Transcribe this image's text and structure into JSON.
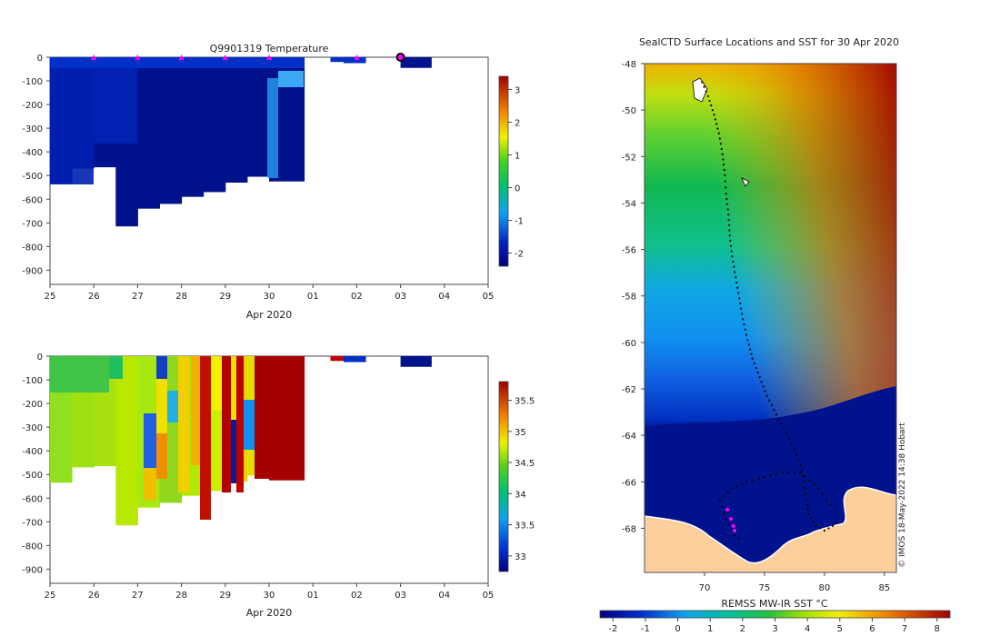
{
  "colors": {
    "deep_blue": "#00128c",
    "mid_blue": "#0030c8",
    "ice": "#2a9cf0",
    "land": "#fccf9d",
    "red_dark": "#a80000",
    "marker": "#ff00ff"
  },
  "chart_data": [
    {
      "type": "heatmap",
      "title": "Q9901319  Temperature",
      "xlabel": "Apr 2020",
      "x_ticks": [
        "25",
        "26",
        "27",
        "28",
        "29",
        "30",
        "01",
        "02",
        "03",
        "04",
        "05"
      ],
      "y_ticks": [
        "0",
        "-100",
        "-200",
        "-300",
        "-400",
        "-500",
        "-600",
        "-700",
        "-800",
        "-900"
      ],
      "ylim": [
        -960,
        0
      ],
      "colorbar_ticks": [
        "3",
        "2",
        "1",
        "0",
        "-1",
        "-2"
      ],
      "colorbar_range": [
        -2.4,
        3.4
      ],
      "profile_markers_day": [
        1,
        2,
        3,
        4,
        5,
        7,
        8
      ],
      "profiles": [
        {
          "x0": 0.0,
          "x1": 0.5,
          "depth": 535
        },
        {
          "x0": 0.5,
          "x1": 1.0,
          "depth": 470
        },
        {
          "x0": 1.0,
          "x1": 1.5,
          "depth": 465
        },
        {
          "x0": 1.5,
          "x1": 2.0,
          "depth": 715
        },
        {
          "x0": 2.0,
          "x1": 2.5,
          "depth": 640
        },
        {
          "x0": 2.5,
          "x1": 3.0,
          "depth": 620
        },
        {
          "x0": 3.0,
          "x1": 3.5,
          "depth": 590
        },
        {
          "x0": 3.5,
          "x1": 4.0,
          "depth": 570
        },
        {
          "x0": 4.0,
          "x1": 4.5,
          "depth": 530
        },
        {
          "x0": 4.5,
          "x1": 5.0,
          "depth": 505
        },
        {
          "x0": 5.0,
          "x1": 5.8,
          "depth": 525
        },
        {
          "x0": 6.4,
          "x1": 6.7,
          "depth": 20
        },
        {
          "x0": 6.7,
          "x1": 7.2,
          "depth": 25
        },
        {
          "x0": 8.0,
          "x1": 8.7,
          "depth": 45
        }
      ]
    },
    {
      "type": "heatmap",
      "title": "",
      "xlabel": "Apr 2020",
      "x_ticks": [
        "25",
        "26",
        "27",
        "28",
        "29",
        "30",
        "01",
        "02",
        "03",
        "04",
        "05"
      ],
      "y_ticks": [
        "0",
        "-100",
        "-200",
        "-300",
        "-400",
        "-500",
        "-600",
        "-700",
        "-800",
        "-900"
      ],
      "ylim": [
        -960,
        0
      ],
      "colorbar_ticks": [
        "35.5",
        "35",
        "34.5",
        "34",
        "33.5",
        "33"
      ],
      "colorbar_range": [
        32.75,
        35.8
      ],
      "profiles": [
        {
          "x0": 0.0,
          "x1": 0.5,
          "depth": 535
        },
        {
          "x0": 0.5,
          "x1": 1.0,
          "depth": 470
        },
        {
          "x0": 1.0,
          "x1": 1.5,
          "depth": 465
        },
        {
          "x0": 1.5,
          "x1": 2.0,
          "depth": 715
        },
        {
          "x0": 2.0,
          "x1": 2.5,
          "depth": 640
        },
        {
          "x0": 2.5,
          "x1": 3.0,
          "depth": 620
        },
        {
          "x0": 3.0,
          "x1": 3.5,
          "depth": 590
        },
        {
          "x0": 3.5,
          "x1": 4.0,
          "depth": 570
        },
        {
          "x0": 4.0,
          "x1": 4.5,
          "depth": 530
        },
        {
          "x0": 4.5,
          "x1": 5.0,
          "depth": 505
        },
        {
          "x0": 5.0,
          "x1": 5.8,
          "depth": 525
        },
        {
          "x0": 6.4,
          "x1": 6.7,
          "depth": 20
        },
        {
          "x0": 6.7,
          "x1": 7.2,
          "depth": 25
        },
        {
          "x0": 8.0,
          "x1": 8.7,
          "depth": 45
        }
      ]
    },
    {
      "type": "heatmap",
      "title": "SealCTD Surface Locations and SST for 30 Apr 2020",
      "xlabel": "",
      "x_ticks": [
        "70",
        "75",
        "80",
        "85"
      ],
      "xlim": [
        65,
        86
      ],
      "y_ticks": [
        "-48",
        "-50",
        "-52",
        "-54",
        "-56",
        "-58",
        "-60",
        "-62",
        "-64",
        "-66",
        "-68"
      ],
      "ylim": [
        -69.9,
        -48
      ],
      "colorbar_label": "REMSS MW-IR SST °C",
      "colorbar_ticks": [
        "-2",
        "-1",
        "0",
        "1",
        "2",
        "3",
        "4",
        "5",
        "6",
        "7",
        "8"
      ],
      "colorbar_range": [
        -2.4,
        8.4
      ],
      "credit": "© IMOS 18-May-2022 14:38 Hobart",
      "track": [
        [
          69.8,
          -48.8
        ],
        [
          70.3,
          -49.4
        ],
        [
          70.8,
          -50.2
        ],
        [
          71.2,
          -51.0
        ],
        [
          71.5,
          -51.9
        ],
        [
          71.7,
          -52.8
        ],
        [
          71.8,
          -53.6
        ],
        [
          72.0,
          -54.5
        ],
        [
          72.1,
          -55.4
        ],
        [
          72.3,
          -56.3
        ],
        [
          72.6,
          -57.2
        ],
        [
          72.9,
          -58.1
        ],
        [
          73.2,
          -59.0
        ],
        [
          73.6,
          -59.9
        ],
        [
          74.0,
          -60.7
        ],
        [
          74.6,
          -61.5
        ],
        [
          75.2,
          -62.3
        ],
        [
          76.0,
          -63.1
        ],
        [
          76.8,
          -63.9
        ],
        [
          77.5,
          -64.6
        ],
        [
          78.0,
          -65.3
        ],
        [
          78.3,
          -66.0
        ],
        [
          78.5,
          -66.8
        ],
        [
          78.7,
          -67.4
        ],
        [
          79.3,
          -67.9
        ],
        [
          80.0,
          -68.1
        ],
        [
          80.7,
          -67.9
        ],
        [
          81.2,
          -67.6
        ]
      ],
      "track_loop": [
        [
          80.5,
          -67.0
        ],
        [
          79.5,
          -66.3
        ],
        [
          78.0,
          -65.6
        ],
        [
          76.5,
          -65.6
        ],
        [
          75.0,
          -65.8
        ],
        [
          73.5,
          -66.0
        ],
        [
          72.3,
          -66.3
        ],
        [
          71.3,
          -66.8
        ],
        [
          71.8,
          -67.6
        ],
        [
          72.5,
          -68.3
        ],
        [
          73.2,
          -68.6
        ]
      ],
      "recent_positions": [
        [
          71.9,
          -67.2
        ],
        [
          72.2,
          -67.6
        ],
        [
          72.4,
          -67.9
        ],
        [
          72.5,
          -68.1
        ]
      ]
    }
  ]
}
